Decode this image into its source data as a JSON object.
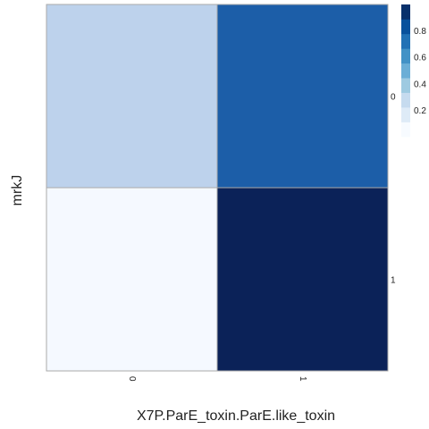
{
  "chart_data": {
    "type": "heatmap",
    "title": "",
    "xlabel": "X7P.ParE_toxin.ParE.like_toxin",
    "ylabel": "mrkJ",
    "x_categories": [
      "0",
      "1"
    ],
    "y_categories": [
      "0",
      "1"
    ],
    "cells": [
      {
        "x": "0",
        "y": "0",
        "value": 0.25
      },
      {
        "x": "1",
        "y": "0",
        "value": 0.75
      },
      {
        "x": "0",
        "y": "1",
        "value": 0.0
      },
      {
        "x": "1",
        "y": "1",
        "value": 1.0
      }
    ],
    "value_range": [
      0,
      1
    ],
    "colorbar": {
      "ticks": [
        "0.2",
        "0.4",
        "0.6",
        "0.8"
      ],
      "tick_values": [
        0.2,
        0.4,
        0.6,
        0.8
      ],
      "bin_colors": [
        "#f7fbff",
        "#deebf7",
        "#c6dbef",
        "#9ecae1",
        "#6baed6",
        "#4292c6",
        "#2171b5",
        "#08519c",
        "#08306b"
      ],
      "placement": "right"
    },
    "colors": {
      "cells": {
        "x0_y0": "#bdd2ec",
        "x1_y0": "#1c5ea8",
        "x0_y1": "#f5f9ff",
        "x1_y1": "#0b2258"
      },
      "grid_line": "#aaaaaa"
    },
    "grid": true
  }
}
